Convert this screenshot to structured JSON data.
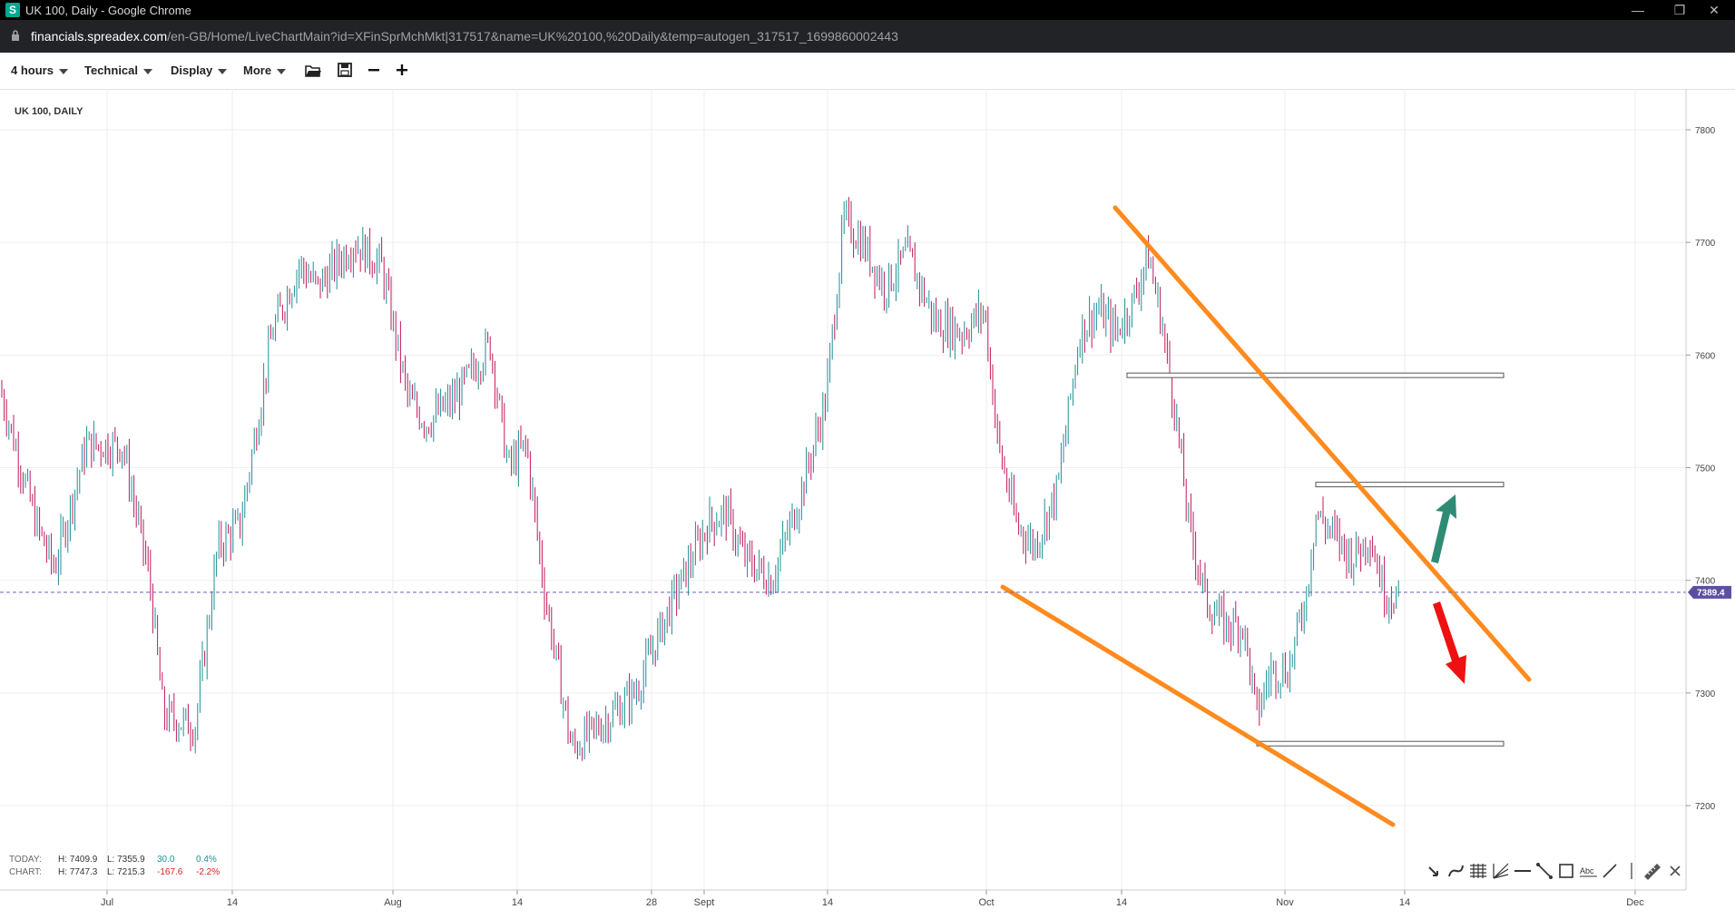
{
  "browser": {
    "window_title": "UK 100, Daily - Google Chrome",
    "url_host": "financials.spreadex.com",
    "url_path": "/en-GB/Home/LiveChartMain?id=XFinSprMchMkt|317517&name=UK%20100,%20Daily&temp=autogen_317517_1699860002443"
  },
  "toolbar": {
    "timeframe_label": "4 hours",
    "technical_label": "Technical",
    "display_label": "Display",
    "more_label": "More",
    "icons": [
      "folder-open-icon",
      "save-icon",
      "zoom-out-icon",
      "zoom-in-icon"
    ]
  },
  "chart": {
    "instrument_label": "UK 100, DAILY",
    "current_price_label": "7389.4",
    "current_price": 7389.4,
    "y_ticks": [
      "7800",
      "7700",
      "7600",
      "7500",
      "7400",
      "7300",
      "7200"
    ],
    "x_ticks": [
      "Jul",
      "14",
      "Aug",
      "14",
      "28",
      "Sept",
      "14",
      "Oct",
      "14",
      "Nov",
      "14",
      "Dec"
    ],
    "colors": {
      "up": "#1e8f96",
      "down": "#c2185b",
      "trendline": "#ff8a1e",
      "arrow_up": "#2e8b74",
      "arrow_down": "#ee1111",
      "price_badge": "#5b4fa3"
    },
    "key_levels": [
      7582,
      7485,
      7255
    ]
  },
  "stats": {
    "today": {
      "label": "TODAY:",
      "high": "H: 7409.9",
      "low": "L: 7355.9",
      "change": "30.0",
      "change_pct": "0.4%"
    },
    "chart": {
      "label": "CHART:",
      "high": "H: 7747.3",
      "low": "L: 7215.3",
      "change": "-167.6",
      "change_pct": "-2.2%"
    }
  },
  "draw_tools": [
    "pointer-icon",
    "curve-tool-icon",
    "fibonacci-tool-icon",
    "fan-tool-icon",
    "horizontal-line-icon",
    "trendline-icon",
    "rectangle-icon",
    "text-tool-icon",
    "line-tool-icon",
    "separator",
    "ruler-icon",
    "close-icon"
  ]
}
